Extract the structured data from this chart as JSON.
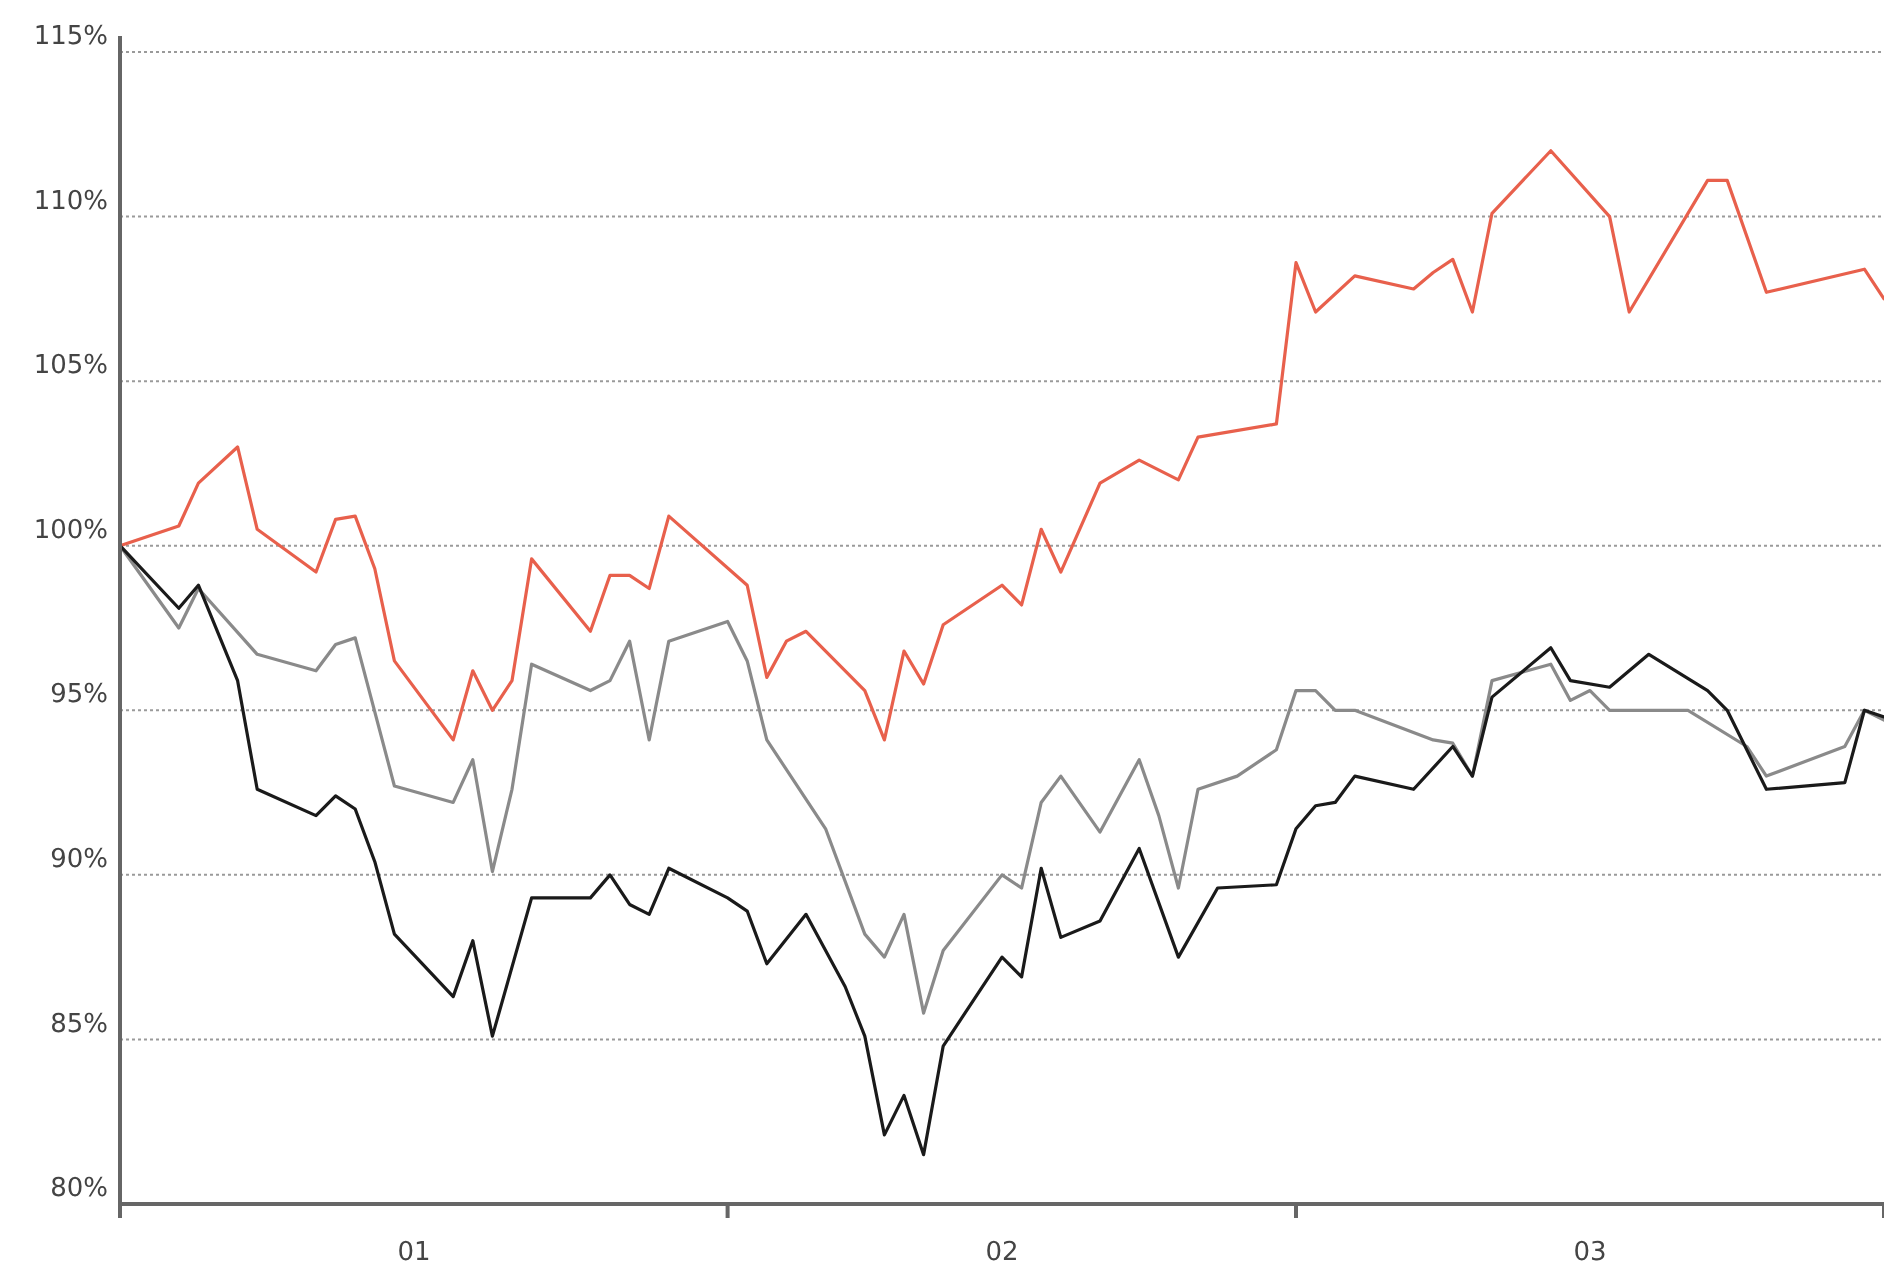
{
  "chart_data": {
    "type": "line",
    "xlim": [
      "--01-01",
      "--03-31"
    ],
    "xticks": [
      {
        "value": "--01-01",
        "label": null
      },
      {
        "value": "--01-16",
        "label": "01"
      },
      {
        "value": "--02-01",
        "label": null
      },
      {
        "value": "--02-15",
        "label": "02"
      },
      {
        "value": "--03-01",
        "label": null
      },
      {
        "value": "--03-16",
        "label": "03"
      },
      {
        "value": "--03-31",
        "label": null
      }
    ],
    "ylim": [
      80,
      115
    ],
    "yticks": [
      {
        "value": 80,
        "label": "80%"
      },
      {
        "value": 85,
        "label": "85%"
      },
      {
        "value": 90,
        "label": "90%"
      },
      {
        "value": 95,
        "label": "95%"
      },
      {
        "value": 100,
        "label": "100%"
      },
      {
        "value": 105,
        "label": "105%"
      },
      {
        "value": 110,
        "label": "110%"
      },
      {
        "value": 115,
        "label": "115%"
      }
    ],
    "grid": "y",
    "line_style": "solid",
    "marker": "none",
    "series": [
      {
        "color": "#e8604c",
        "x": [
          "--01-01",
          "--01-04",
          "--01-05",
          "--01-07",
          "--01-08",
          "--01-11",
          "--01-12",
          "--01-13",
          "--01-14",
          "--01-15",
          "--01-18",
          "--01-19",
          "--01-20",
          "--01-21",
          "--01-22",
          "--01-25",
          "--01-26",
          "--01-27",
          "--01-28",
          "--01-29",
          "--02-02",
          "--02-03",
          "--02-04",
          "--02-05",
          "--02-08",
          "--02-09",
          "--02-10",
          "--02-11",
          "--02-12",
          "--02-15",
          "--02-16",
          "--02-17",
          "--02-18",
          "--02-20",
          "--02-22",
          "--02-24",
          "--02-25",
          "--02-29",
          "--03-01",
          "--03-02",
          "--03-04",
          "--03-07",
          "--03-08",
          "--03-09",
          "--03-10",
          "--03-11",
          "--03-14",
          "--03-17",
          "--03-18",
          "--03-22",
          "--03-23",
          "--03-25",
          "--03-30",
          "--03-31"
        ],
        "values": [
          100,
          100.6,
          101.9,
          103.0,
          100.5,
          99.2,
          100.8,
          100.9,
          99.3,
          96.5,
          94.1,
          96.2,
          95.0,
          95.9,
          99.6,
          97.4,
          99.1,
          99.1,
          98.7,
          100.9,
          98.8,
          96.0,
          97.1,
          97.4,
          95.6,
          94.1,
          96.8,
          95.8,
          97.6,
          98.8,
          98.2,
          100.5,
          99.2,
          101.9,
          102.6,
          102.0,
          103.3,
          103.7,
          108.6,
          107.1,
          108.2,
          107.8,
          108.3,
          108.7,
          107.1,
          110.1,
          112.0,
          110.0,
          107.1,
          111.1,
          111.1,
          107.7,
          108.4,
          107.5
        ]
      },
      {
        "color": "#8a8a8a",
        "x": [
          "--01-01",
          "--01-04",
          "--01-05",
          "--01-08",
          "--01-11",
          "--01-12",
          "--01-13",
          "--01-15",
          "--01-18",
          "--01-19",
          "--01-20",
          "--01-21",
          "--01-22",
          "--01-25",
          "--01-26",
          "--01-27",
          "--01-28",
          "--01-29",
          "--02-01",
          "--02-02",
          "--02-03",
          "--02-06",
          "--02-08",
          "--02-09",
          "--02-10",
          "--02-11",
          "--02-12",
          "--02-15",
          "--02-16",
          "--02-17",
          "--02-18",
          "--02-20",
          "--02-22",
          "--02-23",
          "--02-24",
          "--02-25",
          "--02-27",
          "--02-29",
          "--03-01",
          "--03-02",
          "--03-03",
          "--03-04",
          "--03-08",
          "--03-09",
          "--03-10",
          "--03-11",
          "--03-14",
          "--03-15",
          "--03-16",
          "--03-17",
          "--03-21",
          "--03-24",
          "--03-25",
          "--03-29",
          "--03-30",
          "--03-31"
        ],
        "values": [
          100,
          97.5,
          98.7,
          96.7,
          96.2,
          97.0,
          97.2,
          92.7,
          92.2,
          93.5,
          90.1,
          92.6,
          96.4,
          95.6,
          95.9,
          97.1,
          94.1,
          97.1,
          97.7,
          96.5,
          94.1,
          91.4,
          88.2,
          87.5,
          88.8,
          85.8,
          87.7,
          90.0,
          89.6,
          92.2,
          93.0,
          91.3,
          93.5,
          91.8,
          89.6,
          92.6,
          93.0,
          93.8,
          95.6,
          95.6,
          95.0,
          95.0,
          94.1,
          94.0,
          93.0,
          95.9,
          96.4,
          95.3,
          95.6,
          95.0,
          95.0,
          93.9,
          93.0,
          93.9,
          95.0,
          94.7
        ]
      },
      {
        "color": "#1a1a1a",
        "x": [
          "--01-01",
          "--01-04",
          "--01-05",
          "--01-07",
          "--01-08",
          "--01-11",
          "--01-12",
          "--01-13",
          "--01-14",
          "--01-15",
          "--01-18",
          "--01-19",
          "--01-20",
          "--01-22",
          "--01-25",
          "--01-26",
          "--01-27",
          "--01-28",
          "--01-29",
          "--02-01",
          "--02-02",
          "--02-03",
          "--02-05",
          "--02-07",
          "--02-08",
          "--02-09",
          "--02-10",
          "--02-11",
          "--02-12",
          "--02-15",
          "--02-16",
          "--02-17",
          "--02-18",
          "--02-20",
          "--02-22",
          "--02-24",
          "--02-26",
          "--02-29",
          "--03-01",
          "--03-02",
          "--03-03",
          "--03-04",
          "--03-07",
          "--03-09",
          "--03-10",
          "--03-11",
          "--03-14",
          "--03-15",
          "--03-17",
          "--03-19",
          "--03-22",
          "--03-23",
          "--03-25",
          "--03-29",
          "--03-30",
          "--03-31"
        ],
        "values": [
          100,
          98.1,
          98.8,
          95.9,
          92.6,
          91.8,
          92.4,
          92.0,
          90.4,
          88.2,
          86.3,
          88.0,
          85.1,
          89.3,
          89.3,
          90.0,
          89.1,
          88.8,
          90.2,
          89.3,
          88.9,
          87.3,
          88.8,
          86.6,
          85.1,
          82.1,
          83.3,
          81.5,
          84.8,
          87.5,
          86.9,
          90.2,
          88.1,
          88.6,
          90.8,
          87.5,
          89.6,
          89.7,
          91.4,
          92.1,
          92.2,
          93.0,
          92.6,
          93.9,
          93.0,
          95.4,
          96.9,
          95.9,
          95.7,
          96.7,
          95.6,
          95.0,
          92.6,
          92.8,
          95.0,
          94.8
        ]
      }
    ]
  }
}
